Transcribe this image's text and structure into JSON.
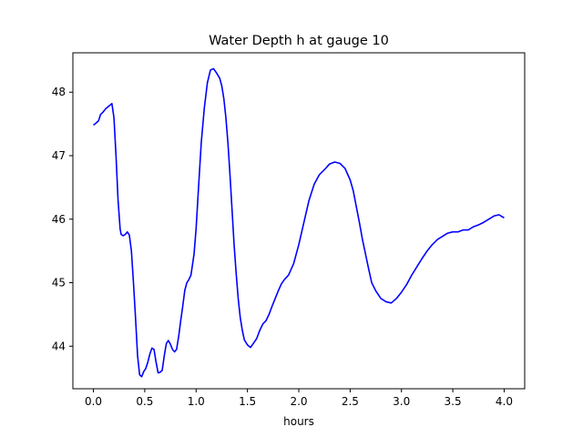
{
  "chart_data": {
    "type": "line",
    "title": "Water Depth h at gauge 10",
    "xlabel": "hours",
    "ylabel": "",
    "xlim": [
      -0.2,
      4.2
    ],
    "ylim": [
      43.33,
      48.62
    ],
    "xticks": [
      0.0,
      0.5,
      1.0,
      1.5,
      2.0,
      2.5,
      3.0,
      3.5,
      4.0
    ],
    "xtick_labels": [
      "0.0",
      "0.5",
      "1.0",
      "1.5",
      "2.0",
      "2.5",
      "3.0",
      "3.5",
      "4.0"
    ],
    "yticks": [
      44,
      45,
      46,
      47,
      48
    ],
    "ytick_labels": [
      "44",
      "45",
      "46",
      "47",
      "48"
    ],
    "grid": false,
    "series": [
      {
        "color": "#0000ff",
        "x": [
          0.0,
          0.03,
          0.05,
          0.07,
          0.09,
          0.12,
          0.15,
          0.18,
          0.2,
          0.22,
          0.24,
          0.26,
          0.27,
          0.29,
          0.31,
          0.33,
          0.35,
          0.37,
          0.39,
          0.41,
          0.43,
          0.45,
          0.47,
          0.49,
          0.51,
          0.53,
          0.55,
          0.57,
          0.59,
          0.61,
          0.63,
          0.65,
          0.67,
          0.69,
          0.71,
          0.73,
          0.75,
          0.77,
          0.79,
          0.81,
          0.83,
          0.85,
          0.87,
          0.89,
          0.91,
          0.93,
          0.95,
          0.98,
          1.0,
          1.02,
          1.05,
          1.08,
          1.11,
          1.14,
          1.17,
          1.2,
          1.23,
          1.25,
          1.27,
          1.29,
          1.31,
          1.33,
          1.35,
          1.37,
          1.39,
          1.41,
          1.43,
          1.45,
          1.47,
          1.5,
          1.53,
          1.56,
          1.59,
          1.62,
          1.65,
          1.68,
          1.71,
          1.74,
          1.77,
          1.8,
          1.83,
          1.86,
          1.9,
          1.95,
          2.0,
          2.05,
          2.1,
          2.15,
          2.2,
          2.25,
          2.3,
          2.35,
          2.4,
          2.45,
          2.5,
          2.53,
          2.56,
          2.59,
          2.62,
          2.65,
          2.68,
          2.71,
          2.75,
          2.8,
          2.85,
          2.9,
          2.95,
          3.0,
          3.05,
          3.1,
          3.15,
          3.2,
          3.25,
          3.3,
          3.35,
          3.4,
          3.45,
          3.5,
          3.55,
          3.6,
          3.65,
          3.7,
          3.75,
          3.8,
          3.85,
          3.9,
          3.95,
          3.97,
          4.0
        ],
        "y": [
          47.48,
          47.52,
          47.55,
          47.65,
          47.68,
          47.74,
          47.78,
          47.82,
          47.6,
          47.0,
          46.3,
          45.85,
          45.76,
          45.74,
          45.76,
          45.8,
          45.75,
          45.5,
          45.0,
          44.45,
          43.85,
          43.55,
          43.52,
          43.6,
          43.65,
          43.75,
          43.88,
          43.97,
          43.95,
          43.75,
          43.58,
          43.59,
          43.62,
          43.85,
          44.04,
          44.09,
          44.03,
          43.95,
          43.91,
          43.95,
          44.15,
          44.4,
          44.63,
          44.88,
          45.0,
          45.05,
          45.12,
          45.45,
          45.85,
          46.4,
          47.2,
          47.75,
          48.15,
          48.35,
          48.37,
          48.3,
          48.22,
          48.1,
          47.9,
          47.6,
          47.2,
          46.7,
          46.15,
          45.6,
          45.15,
          44.75,
          44.45,
          44.25,
          44.1,
          44.02,
          43.98,
          44.05,
          44.12,
          44.25,
          44.35,
          44.4,
          44.5,
          44.63,
          44.75,
          44.87,
          44.98,
          45.05,
          45.12,
          45.3,
          45.6,
          45.95,
          46.3,
          46.55,
          46.7,
          46.78,
          46.87,
          46.9,
          46.88,
          46.8,
          46.62,
          46.45,
          46.2,
          45.95,
          45.68,
          45.45,
          45.22,
          45.0,
          44.87,
          44.75,
          44.7,
          44.68,
          44.75,
          44.85,
          44.97,
          45.12,
          45.25,
          45.38,
          45.5,
          45.6,
          45.68,
          45.73,
          45.78,
          45.8,
          45.8,
          45.83,
          45.83,
          45.88,
          45.91,
          45.95,
          46.0,
          46.05,
          46.07,
          46.05,
          46.02
        ]
      }
    ]
  }
}
